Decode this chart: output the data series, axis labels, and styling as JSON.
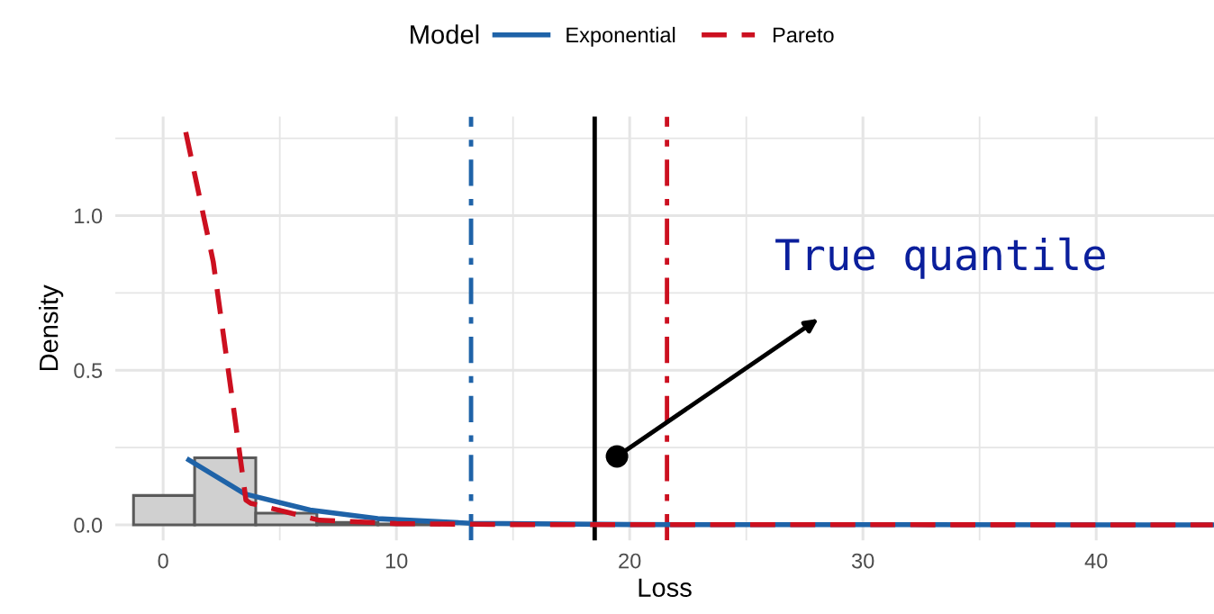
{
  "chart_data": {
    "type": "histogram",
    "xlabel": "Loss",
    "ylabel": "Density",
    "legend_title": "Model",
    "legend": "top",
    "grid": true,
    "bins": [
      -1.27,
      1.35,
      3.97,
      6.59,
      9.21,
      11.83
    ],
    "values": [
      0.095,
      0.217,
      0.038,
      0.008,
      0.003
    ],
    "color": "#d0d0d0",
    "series": [
      {
        "name": "Exponential",
        "type": "line",
        "color": "#1f63a8",
        "line_style": "solid",
        "x": [
          1.1,
          3.5,
          6.3,
          9.2,
          13.2,
          20,
          45
        ],
        "values": [
          0.21,
          0.1,
          0.048,
          0.02,
          0.005,
          0.001,
          0
        ]
      },
      {
        "name": "Pareto",
        "type": "line",
        "color": "#cc1020",
        "line_style": "dashed",
        "x": [
          0.97,
          2.15,
          3.05,
          3.55,
          3.75,
          6.7,
          10,
          15,
          45
        ],
        "values": [
          1.27,
          0.85,
          0.36,
          0.08,
          0.07,
          0.015,
          0.004,
          0.001,
          0
        ]
      }
    ],
    "ref_lines": [
      {
        "axis": "x",
        "value": 13.2,
        "color": "#1f63a8",
        "line_style": "dashdot"
      },
      {
        "axis": "x",
        "value": 18.5,
        "color": "#000000",
        "line_style": "solid"
      },
      {
        "axis": "x",
        "value": 21.6,
        "color": "#cc1020",
        "line_style": "dashdot"
      }
    ],
    "annotations": [
      "True quantile"
    ],
    "xlim": [
      -2.05,
      45.05
    ],
    "ylim": [
      -0.05,
      1.32
    ],
    "xticks": [
      0,
      {
        "value": 5,
        "label": null
      },
      10,
      {
        "value": 15,
        "label": null
      },
      20,
      {
        "value": 25,
        "label": null
      },
      30,
      {
        "value": 35,
        "label": null
      },
      40
    ],
    "yticks": [
      {
        "value": 0,
        "label": "0.0"
      },
      {
        "value": 0.25,
        "label": null
      },
      {
        "value": 0.5,
        "label": "0.5"
      },
      {
        "value": 0.75,
        "label": null
      },
      {
        "value": 1.0,
        "label": "1.0"
      },
      {
        "value": 1.25,
        "label": null
      }
    ]
  }
}
